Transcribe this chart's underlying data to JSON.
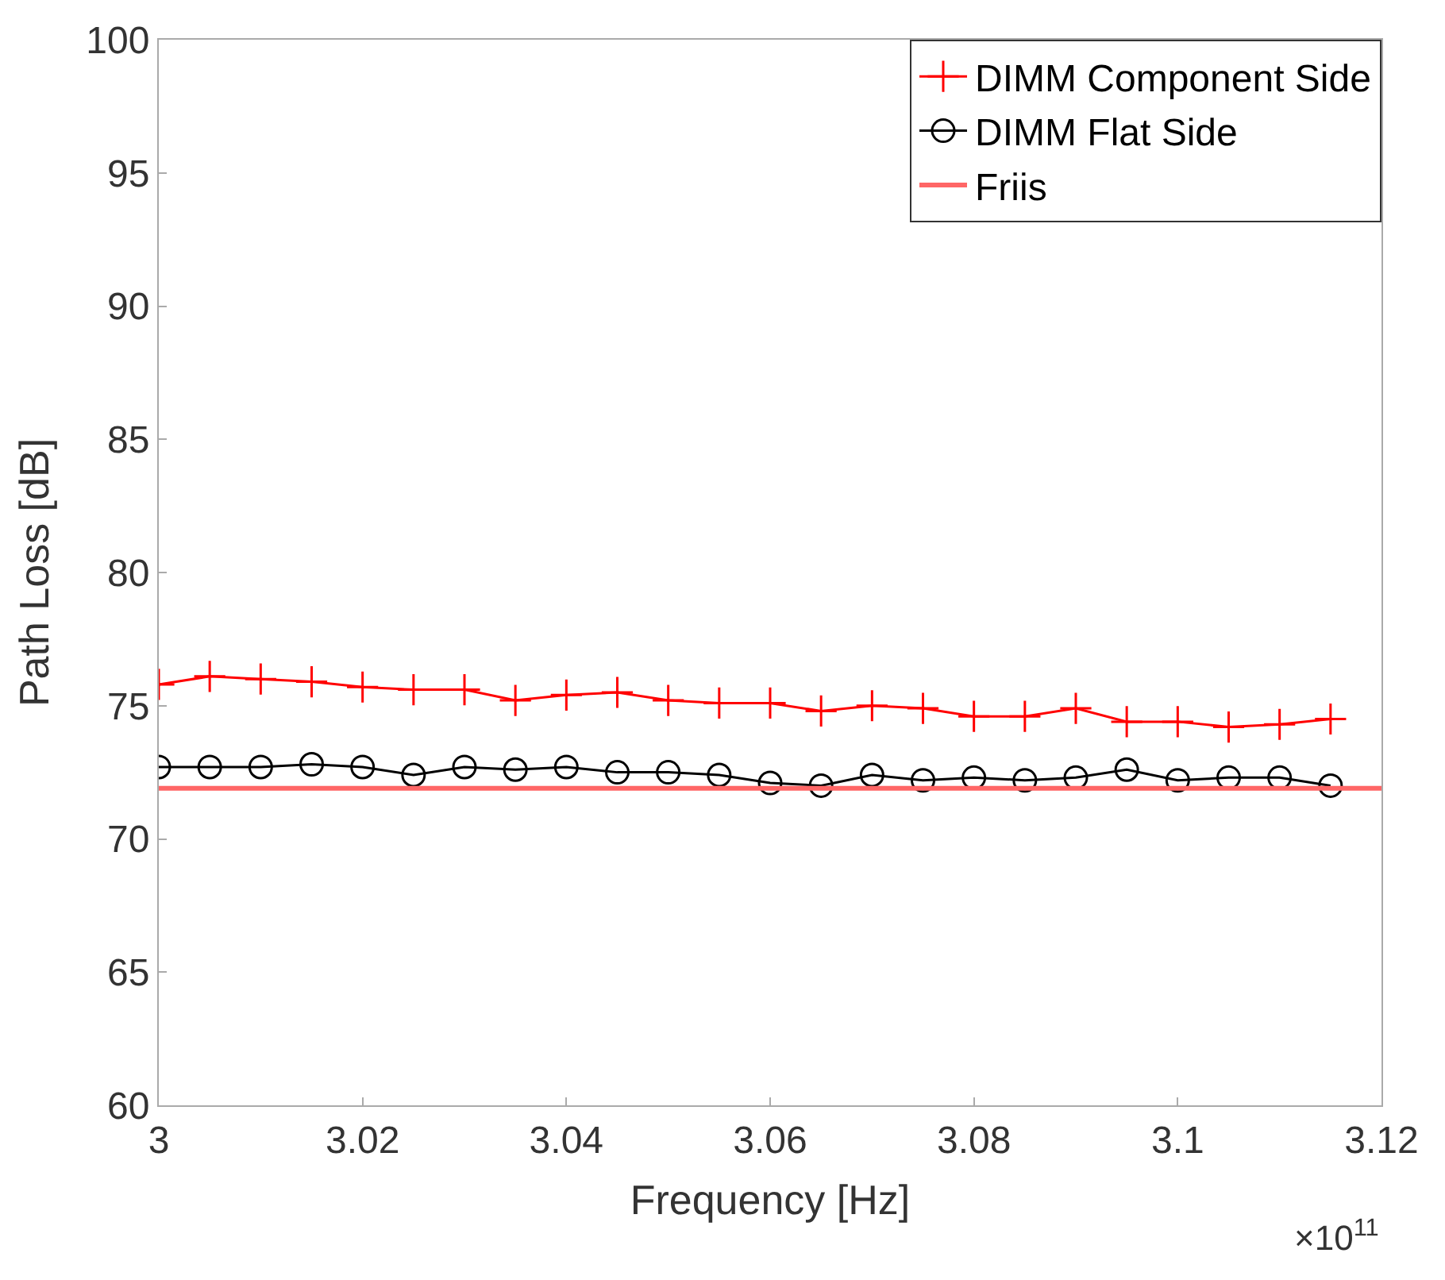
{
  "chart_data": {
    "type": "line",
    "xlabel": "Frequency [Hz]",
    "ylabel": "Path Loss [dB]",
    "xlim": [
      3,
      3.12
    ],
    "xticks": [
      3,
      3.02,
      3.04,
      3.06,
      3.08,
      3.1,
      3.12
    ],
    "ylim": [
      60,
      100
    ],
    "yticks": [
      60,
      65,
      70,
      75,
      80,
      85,
      90,
      95,
      100
    ],
    "legend": "top right",
    "annotations": [
      "×10$^{11}$"
    ],
    "x": [
      3.0,
      3.005,
      3.01,
      3.015,
      3.02,
      3.025,
      3.03,
      3.035,
      3.04,
      3.045,
      3.05,
      3.055,
      3.06,
      3.065,
      3.07,
      3.075,
      3.08,
      3.085,
      3.09,
      3.095,
      3.1,
      3.105,
      3.11,
      3.115
    ],
    "series": [
      {
        "name": "DIMM Component Side",
        "color": "#ff0000",
        "marker": "cross",
        "values": [
          75.8,
          76.1,
          76.0,
          75.9,
          75.7,
          75.6,
          75.6,
          75.2,
          75.4,
          75.5,
          75.2,
          75.1,
          75.1,
          74.8,
          75.0,
          74.9,
          74.6,
          74.6,
          74.9,
          74.4,
          74.4,
          74.2,
          74.3,
          74.5
        ]
      },
      {
        "name": "DIMM Flat Side",
        "color": "#000000",
        "marker": "circle",
        "values": [
          72.7,
          72.7,
          72.7,
          72.8,
          72.7,
          72.4,
          72.7,
          72.6,
          72.7,
          72.5,
          72.5,
          72.4,
          72.1,
          72.0,
          72.4,
          72.2,
          72.3,
          72.2,
          72.3,
          72.6,
          72.2,
          72.3,
          72.3,
          72.0
        ]
      },
      {
        "name": "Friis",
        "color": "#ff6666",
        "marker": "none",
        "x": [
          3.0,
          3.12
        ],
        "values": [
          71.9,
          71.9
        ]
      }
    ]
  }
}
